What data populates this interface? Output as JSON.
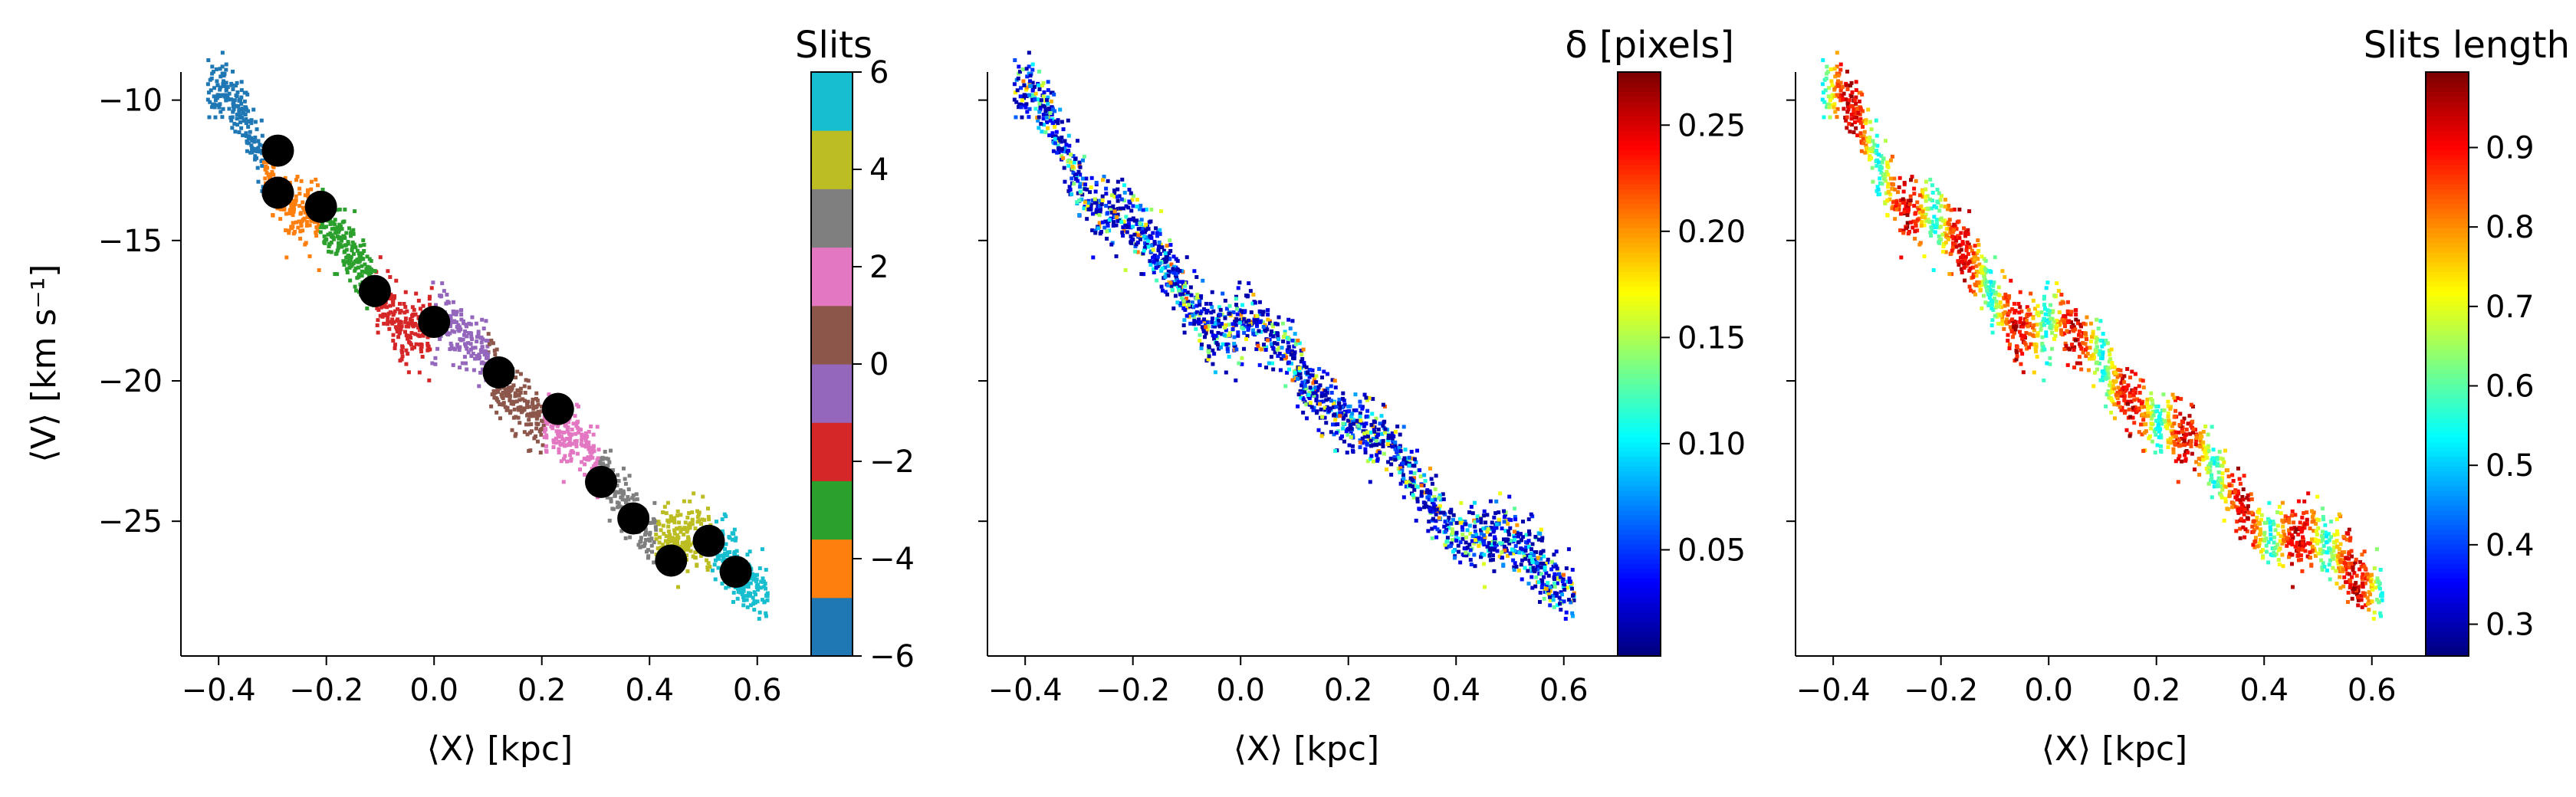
{
  "figure": {
    "panels": [
      {
        "id": "slits",
        "xlabel": "⟨X⟩ [kpc]",
        "ylabel": "⟨V⟩ [km s⁻¹]",
        "colorbar_title": "Slits"
      },
      {
        "id": "delta",
        "xlabel": "⟨X⟩ [kpc]",
        "ylabel": "",
        "colorbar_title": "δ [pixels]"
      },
      {
        "id": "length",
        "xlabel": "⟨X⟩ [kpc]",
        "ylabel": "",
        "colorbar_title": "Slits length"
      }
    ]
  },
  "chart_data": [
    {
      "type": "scatter",
      "title": "",
      "xlabel": "⟨X⟩ [kpc]",
      "ylabel": "⟨V⟩ [km s⁻¹]",
      "xlim": [
        -0.47,
        0.7
      ],
      "ylim": [
        -29.8,
        -9.0
      ],
      "xticks": [
        -0.4,
        -0.2,
        0.0,
        0.2,
        0.4,
        0.6
      ],
      "xtick_labels": [
        "−0.4",
        "−0.2",
        "0.0",
        "0.2",
        "0.4",
        "0.6"
      ],
      "yticks": [
        -10,
        -15,
        -20,
        -25
      ],
      "ytick_labels": [
        "−10",
        "−15",
        "−20",
        "−25"
      ],
      "grid": false,
      "trend_points": [
        [
          -0.42,
          -10.1
        ],
        [
          -0.36,
          -10.6
        ],
        [
          -0.3,
          -12.6
        ],
        [
          -0.22,
          -14.2
        ],
        [
          -0.14,
          -16.2
        ],
        [
          -0.06,
          -17.6
        ],
        [
          0.02,
          -18.2
        ],
        [
          0.1,
          -19.6
        ],
        [
          0.18,
          -20.6
        ],
        [
          0.26,
          -22.6
        ],
        [
          0.34,
          -23.9
        ],
        [
          0.42,
          -25.2
        ],
        [
          0.5,
          -26.2
        ],
        [
          0.6,
          -27.0
        ]
      ],
      "slit_centers": {
        "x": [
          -0.29,
          -0.29,
          -0.21,
          -0.11,
          0.0,
          0.12,
          0.23,
          0.31,
          0.37,
          0.44,
          0.51,
          0.56
        ],
        "y": [
          -11.8,
          -13.3,
          -13.8,
          -16.8,
          -17.9,
          -19.7,
          -21.0,
          -23.6,
          -24.9,
          -26.4,
          -25.7,
          -26.8
        ]
      },
      "colorbar": {
        "title": "Slits",
        "range": [
          -6,
          6
        ],
        "ticks": [
          -6,
          -4,
          -2,
          0,
          2,
          4,
          6
        ],
        "tick_labels": [
          "−6",
          "−4",
          "−2",
          "0",
          "2",
          "4",
          "6"
        ],
        "colors": [
          "#1f77b4",
          "#ff7f0e",
          "#2ca02c",
          "#d62728",
          "#9467bd",
          "#8c564b",
          "#e377c2",
          "#7f7f7f",
          "#bcbd22",
          "#17becf"
        ]
      }
    },
    {
      "type": "scatter",
      "title": "",
      "xlabel": "⟨X⟩ [kpc]",
      "ylabel": "",
      "xlim": [
        -0.47,
        0.7
      ],
      "ylim": [
        -29.8,
        -9.0
      ],
      "xticks": [
        -0.4,
        -0.2,
        0.0,
        0.2,
        0.4,
        0.6
      ],
      "xtick_labels": [
        "−0.4",
        "−0.2",
        "0.0",
        "0.2",
        "0.4",
        "0.6"
      ],
      "yticks": [
        -10,
        -15,
        -20,
        -25
      ],
      "grid": false,
      "colorbar": {
        "title": "δ [pixels]",
        "colormap": "jet",
        "range": [
          0.0,
          0.275
        ],
        "ticks": [
          0.05,
          0.1,
          0.15,
          0.2,
          0.25
        ],
        "tick_labels": [
          "0.05",
          "0.10",
          "0.15",
          "0.20",
          "0.25"
        ]
      }
    },
    {
      "type": "scatter",
      "title": "",
      "xlabel": "⟨X⟩ [kpc]",
      "ylabel": "",
      "xlim": [
        -0.47,
        0.7
      ],
      "ylim": [
        -29.8,
        -9.0
      ],
      "xticks": [
        -0.4,
        -0.2,
        0.0,
        0.2,
        0.4,
        0.6
      ],
      "xtick_labels": [
        "−0.4",
        "−0.2",
        "0.0",
        "0.2",
        "0.4",
        "0.6"
      ],
      "yticks": [
        -10,
        -15,
        -20,
        -25
      ],
      "grid": false,
      "colorbar": {
        "title": "Slits length",
        "colormap": "jet",
        "range": [
          0.26,
          0.995
        ],
        "ticks": [
          0.3,
          0.4,
          0.5,
          0.6,
          0.7,
          0.8,
          0.9
        ],
        "tick_labels": [
          "0.3",
          "0.4",
          "0.5",
          "0.6",
          "0.7",
          "0.8",
          "0.9"
        ]
      }
    }
  ]
}
